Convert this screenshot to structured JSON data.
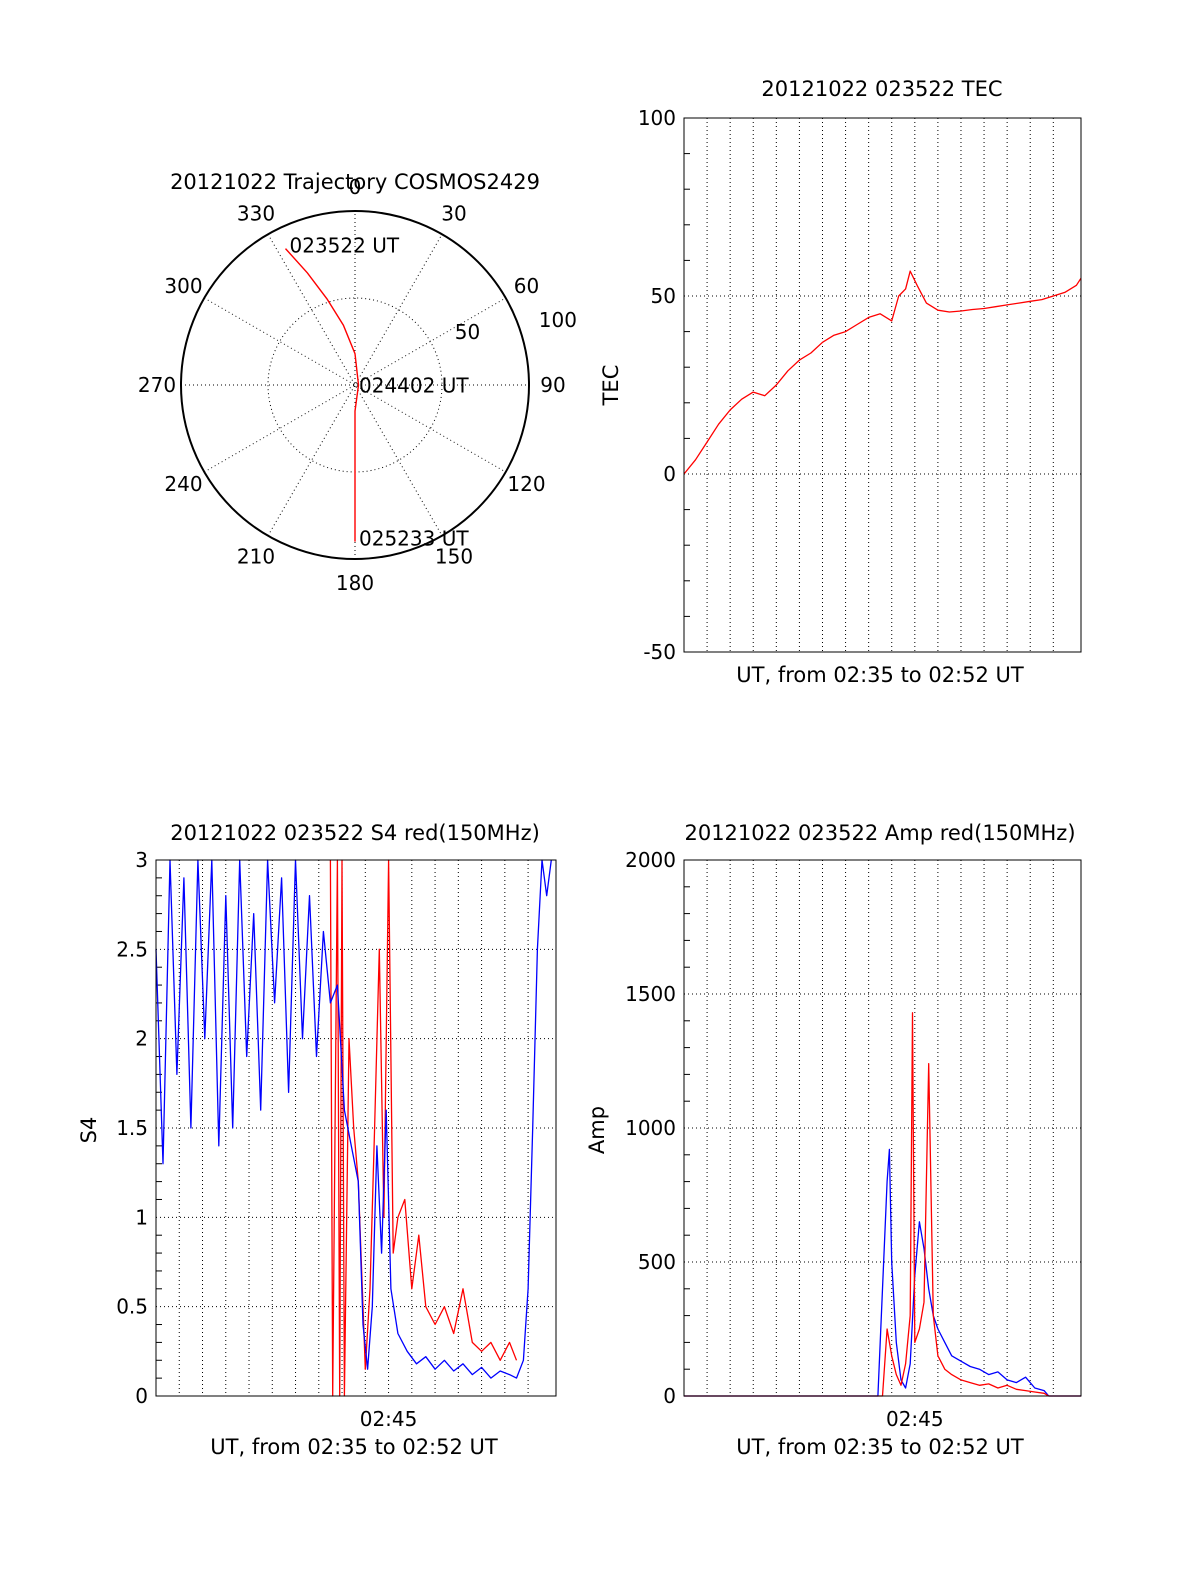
{
  "chart_data": [
    {
      "id": "trajectory",
      "type": "polar",
      "title": "20121022 Trajectory COSMOS2429",
      "angle_labels": [
        "0",
        "30",
        "60",
        "90",
        "120",
        "150",
        "180",
        "210",
        "240",
        "270",
        "300",
        "330"
      ],
      "radial_labels": [
        "50",
        "100"
      ],
      "radial_max": 100,
      "grid": true,
      "annotations": [
        {
          "text": "023522 UT",
          "azimuth": 333,
          "radius": 88
        },
        {
          "text": "024402 UT",
          "azimuth": 180,
          "radius": 2
        },
        {
          "text": "025233 UT",
          "azimuth": 180,
          "radius": 90
        }
      ],
      "series": [
        {
          "color": "#ff0000",
          "azimuth": [
            333,
            337,
            342,
            349,
            0,
            90,
            180,
            180,
            180,
            180,
            180,
            180
          ],
          "radius": [
            88,
            70,
            52,
            35,
            18,
            2,
            15,
            30,
            48,
            65,
            80,
            90
          ]
        }
      ]
    },
    {
      "id": "tec",
      "type": "line",
      "title": "20121022 023522 TEC",
      "xlabel": "UT, from 02:35 to 02:52 UT",
      "ylabel": "TEC",
      "xlim": [
        0,
        17.2
      ],
      "ylim": [
        -50,
        100
      ],
      "yticks": [
        "-50",
        "0",
        "50",
        "100"
      ],
      "grid": true,
      "series": [
        {
          "color": "#ff0000",
          "x": [
            0,
            0.5,
            1,
            1.5,
            2,
            2.5,
            3,
            3.5,
            4,
            4.5,
            5,
            5.5,
            6,
            6.5,
            7,
            7.5,
            8,
            8.5,
            9,
            9.3,
            9.6,
            9.8,
            10.1,
            10.5,
            11,
            11.5,
            12,
            12.5,
            13,
            13.5,
            14,
            14.5,
            15,
            15.5,
            16,
            16.5,
            17,
            17.2
          ],
          "y": [
            0,
            4,
            9,
            14,
            18,
            21,
            23,
            22,
            25,
            29,
            32,
            34,
            37,
            39,
            40,
            42,
            44,
            45,
            43,
            50,
            52,
            57,
            53,
            48,
            46,
            45.5,
            45.8,
            46.2,
            46.5,
            47,
            47.5,
            48,
            48.5,
            49,
            50,
            51,
            53,
            55
          ]
        }
      ]
    },
    {
      "id": "s4",
      "type": "line",
      "title": "20121022 023522 S4 red(150MHz)",
      "xlabel": "UT, from 02:35 to 02:52 UT",
      "ylabel": "S4",
      "xlim": [
        0,
        17.2
      ],
      "ylim": [
        0,
        3
      ],
      "yticks": [
        "0",
        "0.5",
        "1",
        "1.5",
        "2",
        "2.5",
        "3"
      ],
      "xticks": [
        {
          "value": 10,
          "label": "02:45"
        }
      ],
      "grid": true,
      "series": [
        {
          "color": "#ff0000",
          "x": [
            7.5,
            7.6,
            7.8,
            7.9,
            8.0,
            8.1,
            8.3,
            8.5,
            8.7,
            8.9,
            9.0,
            9.2,
            9.4,
            9.6,
            9.8,
            10.0,
            10.2,
            10.4,
            10.7,
            11.0,
            11.3,
            11.6,
            12.0,
            12.4,
            12.8,
            13.2,
            13.6,
            14.0,
            14.4,
            14.8,
            15.2,
            15.5
          ],
          "y": [
            3.0,
            0.0,
            3.0,
            0.0,
            3.0,
            0.0,
            2.0,
            1.5,
            1.2,
            0.5,
            0.15,
            0.6,
            1.5,
            2.5,
            1.0,
            3.0,
            0.8,
            1.0,
            1.1,
            0.6,
            0.9,
            0.5,
            0.4,
            0.5,
            0.35,
            0.6,
            0.3,
            0.25,
            0.3,
            0.2,
            0.3,
            0.2
          ]
        },
        {
          "color": "#0000ff",
          "x": [
            0,
            0.3,
            0.6,
            0.9,
            1.2,
            1.5,
            1.8,
            2.1,
            2.4,
            2.7,
            3.0,
            3.3,
            3.6,
            3.9,
            4.2,
            4.5,
            4.8,
            5.1,
            5.4,
            5.7,
            6.0,
            6.3,
            6.6,
            6.9,
            7.2,
            7.5,
            7.8,
            8.1,
            8.4,
            8.7,
            8.9,
            9.1,
            9.3,
            9.5,
            9.7,
            9.9,
            10.1,
            10.4,
            10.8,
            11.2,
            11.6,
            12.0,
            12.4,
            12.8,
            13.2,
            13.6,
            14.0,
            14.4,
            14.8,
            15.2,
            15.5,
            15.8,
            16.0,
            16.2,
            16.4,
            16.6,
            16.8,
            17.0
          ],
          "y": [
            2.5,
            1.3,
            3.0,
            1.8,
            2.9,
            1.5,
            3.0,
            2.0,
            3.0,
            1.4,
            2.8,
            1.5,
            3.0,
            1.9,
            2.7,
            1.6,
            3.0,
            2.2,
            2.9,
            1.7,
            3.0,
            2.0,
            2.8,
            1.9,
            2.6,
            2.2,
            2.3,
            1.6,
            1.4,
            1.2,
            0.4,
            0.15,
            0.5,
            1.4,
            0.8,
            1.6,
            0.6,
            0.35,
            0.25,
            0.18,
            0.22,
            0.15,
            0.2,
            0.14,
            0.18,
            0.12,
            0.16,
            0.1,
            0.14,
            0.12,
            0.1,
            0.2,
            0.6,
            1.5,
            2.5,
            3.0,
            2.8,
            3.0
          ]
        }
      ]
    },
    {
      "id": "amp",
      "type": "line",
      "title": "20121022 023522 Amp red(150MHz)",
      "xlabel": "UT, from 02:35 to 02:52 UT",
      "ylabel": "Amp",
      "xlim": [
        0,
        17.2
      ],
      "ylim": [
        0,
        2000
      ],
      "yticks": [
        "0",
        "500",
        "1000",
        "1500",
        "2000"
      ],
      "xticks": [
        {
          "value": 10,
          "label": "02:45"
        }
      ],
      "grid": true,
      "series": [
        {
          "color": "#0000ff",
          "x": [
            0,
            8.4,
            8.6,
            8.8,
            8.9,
            9.0,
            9.2,
            9.4,
            9.6,
            9.8,
            10.0,
            10.2,
            10.4,
            10.6,
            10.8,
            11.0,
            11.3,
            11.6,
            12.0,
            12.4,
            12.8,
            13.2,
            13.6,
            14.0,
            14.4,
            14.8,
            15.2,
            15.6,
            15.8,
            17.2
          ],
          "y": [
            0,
            0,
            400,
            800,
            920,
            500,
            200,
            60,
            30,
            120,
            450,
            650,
            550,
            400,
            300,
            250,
            200,
            150,
            130,
            110,
            100,
            80,
            90,
            60,
            50,
            70,
            30,
            20,
            0,
            0
          ]
        },
        {
          "color": "#ff0000",
          "x": [
            0,
            8.6,
            8.8,
            9.0,
            9.2,
            9.4,
            9.6,
            9.8,
            9.9,
            10.0,
            10.2,
            10.4,
            10.6,
            10.8,
            11.0,
            11.3,
            11.6,
            12.0,
            12.4,
            12.8,
            13.2,
            13.6,
            14.0,
            14.4,
            14.8,
            15.2,
            15.6,
            15.8,
            17.2
          ],
          "y": [
            0,
            0,
            250,
            150,
            80,
            40,
            120,
            300,
            1430,
            200,
            250,
            350,
            1240,
            300,
            150,
            100,
            80,
            60,
            50,
            40,
            45,
            30,
            40,
            25,
            20,
            15,
            10,
            0,
            0
          ]
        }
      ]
    }
  ]
}
